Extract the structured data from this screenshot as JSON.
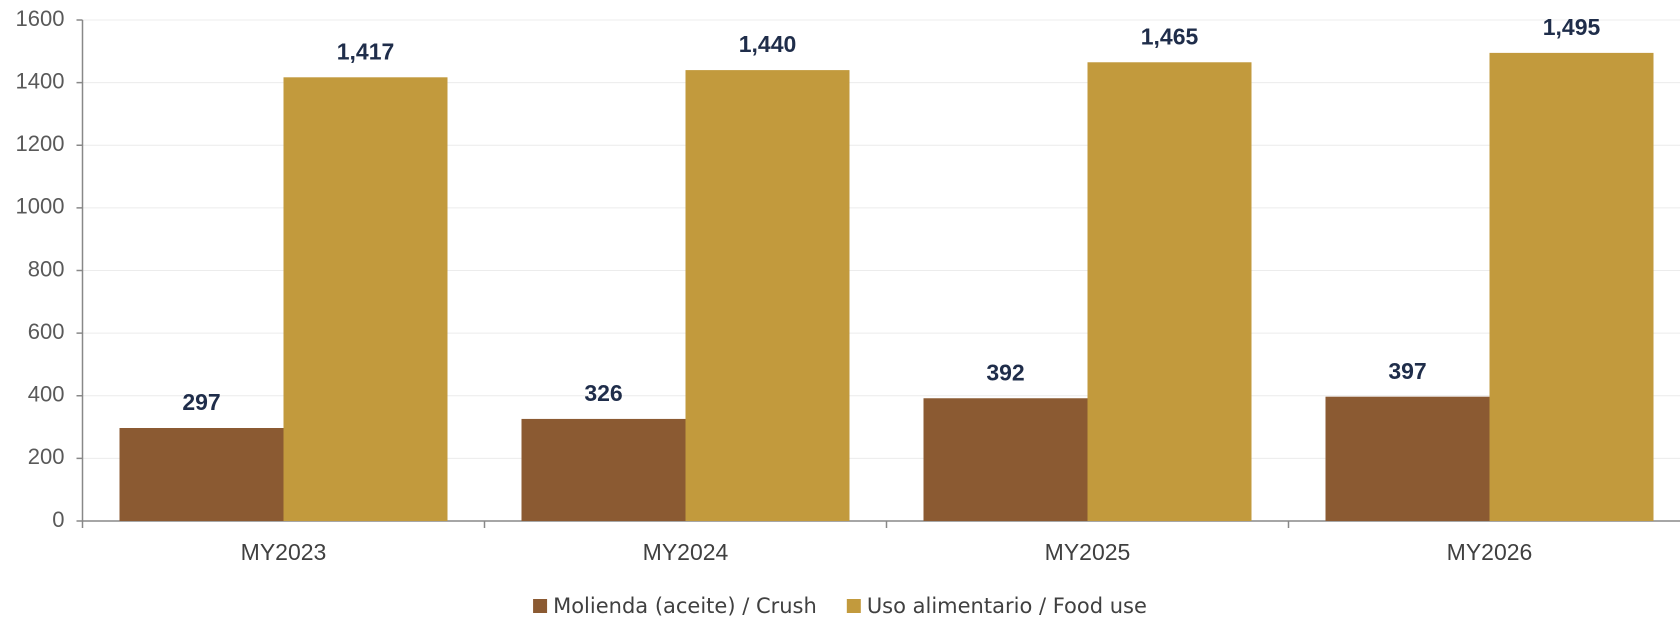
{
  "chart_data": {
    "type": "bar",
    "categories": [
      "MY2023",
      "MY2024",
      "MY2025",
      "MY2026"
    ],
    "series": [
      {
        "name": "Molienda (aceite) / Crush",
        "color": "#8b5a32",
        "values": [
          297,
          326,
          392,
          397
        ]
      },
      {
        "name": "Uso alimentario / Food use",
        "color": "#c29a3d",
        "values": [
          1417,
          1440,
          1465,
          1495
        ],
        "value_labels": [
          "1,417",
          "1,440",
          "1,465",
          "1,495"
        ]
      }
    ],
    "ylim": [
      0,
      1600
    ],
    "yticks": [
      0,
      200,
      400,
      600,
      800,
      1000,
      1200,
      1400,
      1600
    ],
    "grid": true,
    "legend": "bottom"
  }
}
